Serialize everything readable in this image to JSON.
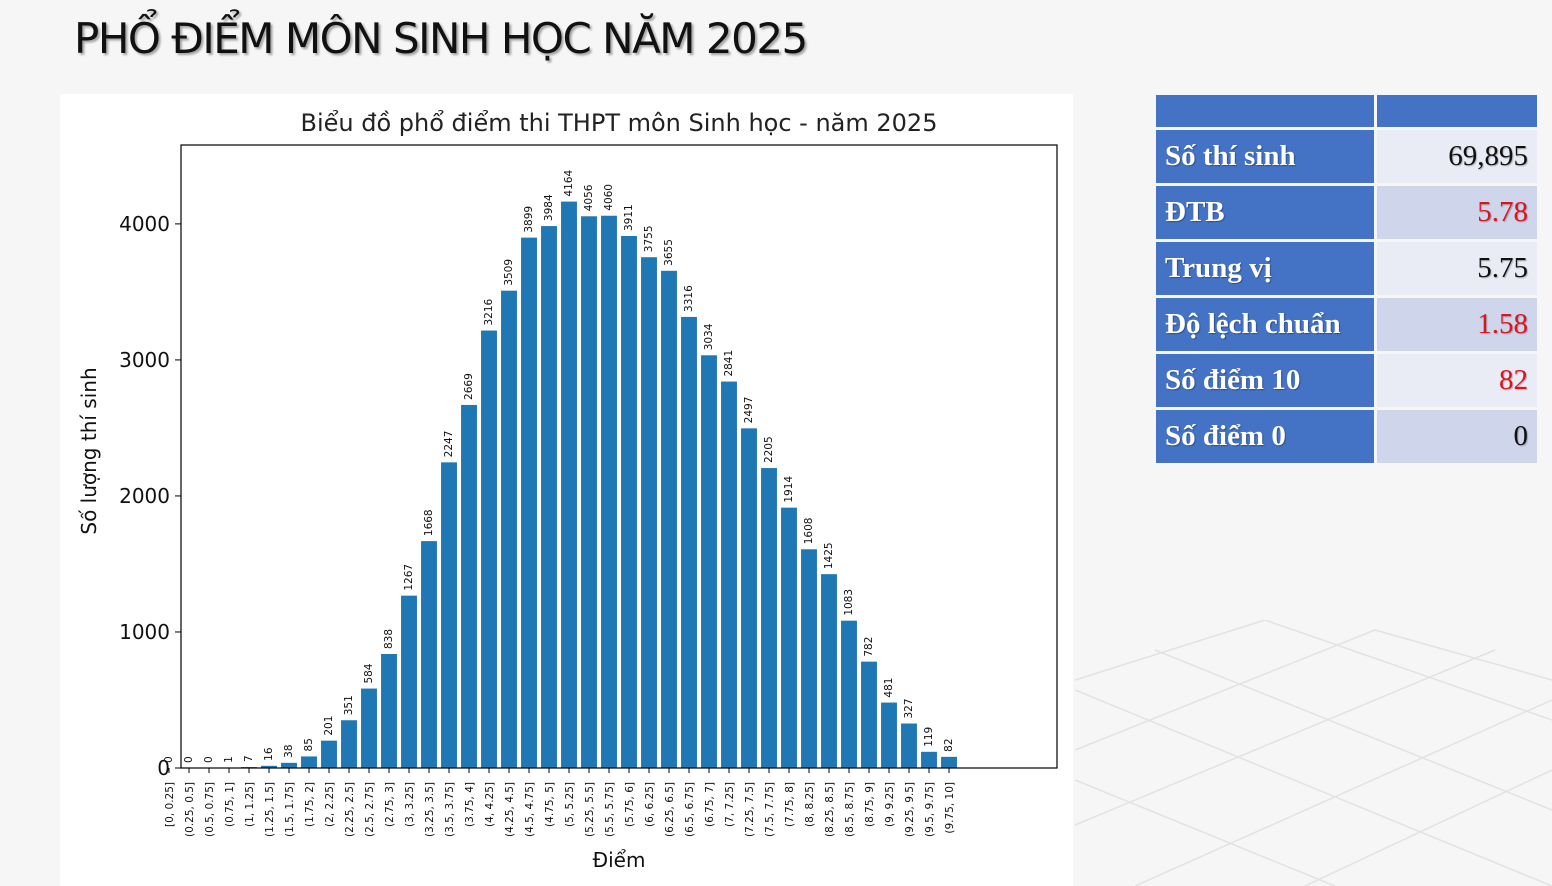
{
  "slide": {
    "title": "PHỔ ĐIỂM MÔN SINH HỌC NĂM 2025"
  },
  "stats": {
    "header": [
      "",
      ""
    ],
    "rows": [
      {
        "label": "Số thí sinh",
        "value": "69,895",
        "highlight": false
      },
      {
        "label": "ĐTB",
        "value": "5.78",
        "highlight": true
      },
      {
        "label": "Trung vị",
        "value": "5.75",
        "highlight": false
      },
      {
        "label": "Độ lệch chuẩn",
        "value": "1.58",
        "highlight": true
      },
      {
        "label": "Số điểm 10",
        "value": "82",
        "highlight": true
      },
      {
        "label": "Số điểm 0",
        "value": "0",
        "highlight": false
      }
    ],
    "colors": {
      "header": "#4472c4",
      "label_cell": "#4472c4",
      "value_odd": "#cfd5ea",
      "value_even": "#e9ebf5",
      "highlight_text": "#e0121b"
    }
  },
  "chart_data": {
    "type": "bar",
    "title": "Biểu đồ phổ điểm thi THPT môn Sinh học - năm 2025",
    "xlabel": "Điểm",
    "ylabel": "Số lượng thí sinh",
    "ylim": [
      0,
      4580
    ],
    "yticks": [
      0,
      1000,
      2000,
      3000,
      4000
    ],
    "bar_color": "#1f77b4",
    "grid": false,
    "categories": [
      "[0, 0.25]",
      "(0.25, 0.5]",
      "(0.5, 0.75]",
      "(0.75, 1]",
      "(1, 1.25]",
      "(1.25, 1.5]",
      "(1.5, 1.75]",
      "(1.75, 2]",
      "(2, 2.25]",
      "(2.25, 2.5]",
      "(2.5, 2.75]",
      "(2.75, 3]",
      "(3, 3.25]",
      "(3.25, 3.5]",
      "(3.5, 3.75]",
      "(3.75, 4]",
      "(4, 4.25]",
      "(4.25, 4.5]",
      "(4.5, 4.75]",
      "(4.75, 5]",
      "(5, 5.25]",
      "(5.25, 5.5]",
      "(5.5, 5.75]",
      "(5.75, 6]",
      "(6, 6.25]",
      "(6.25, 6.5]",
      "(6.5, 6.75]",
      "(6.75, 7]",
      "(7, 7.25]",
      "(7.25, 7.5]",
      "(7.5, 7.75]",
      "(7.75, 8]",
      "(8, 8.25]",
      "(8.25, 8.5]",
      "(8.5, 8.75]",
      "(8.75, 9]",
      "(9, 9.25]",
      "(9.25, 9.5]",
      "(9.5, 9.75]",
      "(9.75, 10]"
    ],
    "values": [
      0,
      0,
      0,
      1,
      7,
      16,
      38,
      85,
      201,
      351,
      584,
      838,
      1267,
      1668,
      2247,
      2669,
      3216,
      3509,
      3899,
      3984,
      4164,
      4056,
      4060,
      3911,
      3755,
      3655,
      3316,
      3034,
      2841,
      2497,
      2205,
      1914,
      1608,
      1425,
      1083,
      782,
      481,
      327,
      119,
      82
    ]
  }
}
